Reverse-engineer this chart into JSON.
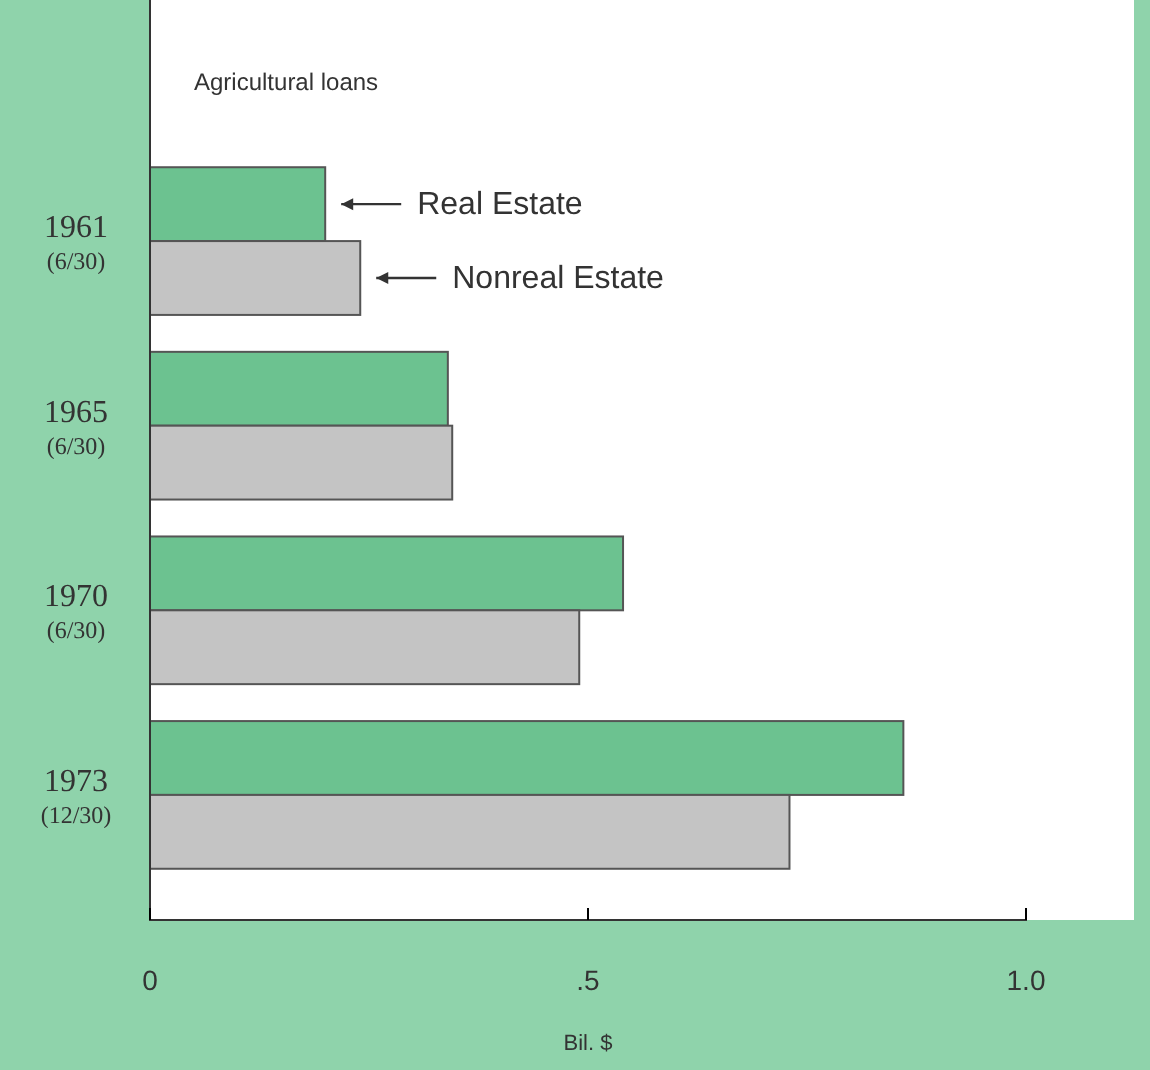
{
  "chart_data": {
    "type": "bar",
    "orientation": "horizontal",
    "title": "Agricultural loans",
    "xlabel": "Bil. $",
    "categories": [
      "1961\n(6/30)",
      "1965\n(6/30)",
      "1970\n(6/30)",
      "1973\n(12/30)"
    ],
    "series": [
      {
        "name": "Real Estate",
        "color": "#6cc290",
        "values": [
          0.2,
          0.34,
          0.54,
          0.86
        ]
      },
      {
        "name": "Nonreal Estate",
        "color": "#c4c4c4",
        "values": [
          0.24,
          0.345,
          0.49,
          0.73
        ]
      }
    ],
    "xlim": [
      0,
      1
    ],
    "xticks": [
      0,
      {
        "value": 0.5,
        "label": ".5"
      },
      {
        "value": 1,
        "label": "1.0"
      }
    ],
    "grid": false
  }
}
